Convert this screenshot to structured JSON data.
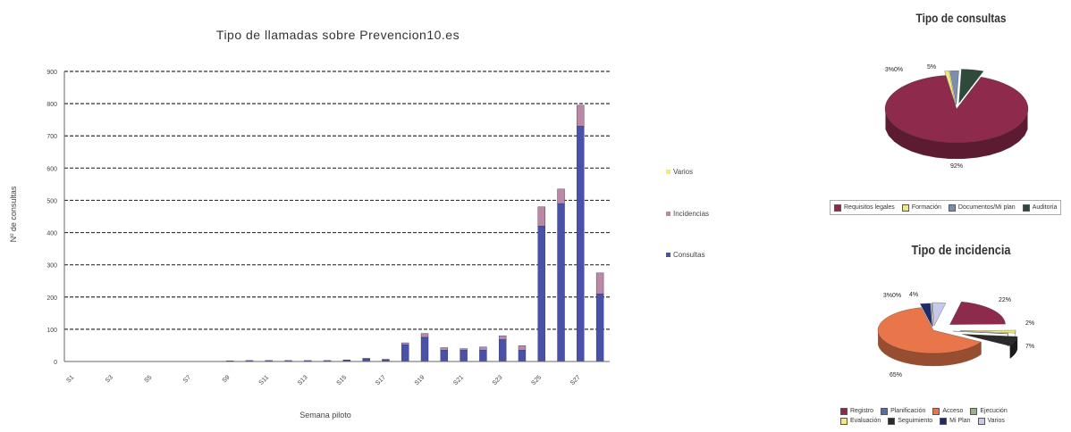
{
  "chart_data": [
    {
      "type": "bar",
      "stacked": true,
      "title": "Tipo de llamadas sobre Prevencion10.es",
      "xlabel": "Semana piloto",
      "ylabel": "Nº de consultas",
      "ylim": [
        0,
        900
      ],
      "yticks": [
        0,
        100,
        200,
        300,
        400,
        500,
        600,
        700,
        800,
        900
      ],
      "ytick_labels": [
        "0",
        "100",
        "200",
        "300",
        "400",
        "500",
        "600",
        "700",
        "800",
        "900"
      ],
      "grid": true,
      "legend": "right",
      "categories": [
        "S1",
        "S2",
        "S3",
        "S4",
        "S5",
        "S6",
        "S7",
        "S8",
        "S9",
        "S10",
        "S11",
        "S12",
        "S13",
        "S14",
        "S15",
        "S16",
        "S17",
        "S18",
        "S19",
        "S20",
        "S21",
        "S22",
        "S23",
        "S24",
        "S25",
        "S26",
        "S27",
        "S28"
      ],
      "xtick_labels": [
        "S1",
        "",
        "S3",
        "",
        "S5",
        "",
        "S7",
        "",
        "S9",
        "",
        "S11",
        "",
        "S13",
        "",
        "S15",
        "",
        "S17",
        "",
        "S19",
        "",
        "S21",
        "",
        "S23",
        "",
        "S25",
        "",
        "S27",
        ""
      ],
      "series": [
        {
          "name": "Consultas",
          "color": "#4a52a8",
          "values": [
            0,
            0,
            0,
            0,
            0,
            0,
            0,
            0,
            2,
            3,
            3,
            3,
            3,
            3,
            4,
            8,
            5,
            52,
            75,
            35,
            35,
            35,
            68,
            35,
            420,
            490,
            730,
            210
          ]
        },
        {
          "name": "Incidencias",
          "color": "#b989a6",
          "values": [
            0,
            0,
            0,
            0,
            0,
            0,
            0,
            0,
            0,
            0,
            0,
            0,
            0,
            0,
            1,
            2,
            2,
            6,
            12,
            8,
            5,
            10,
            12,
            14,
            60,
            45,
            65,
            65
          ]
        },
        {
          "name": "Varios",
          "color": "#f2e97e",
          "values": [
            0,
            0,
            0,
            0,
            0,
            0,
            0,
            0,
            0,
            0,
            0,
            0,
            0,
            0,
            0,
            0,
            0,
            0,
            0,
            0,
            0,
            0,
            0,
            0,
            0,
            0,
            0,
            0
          ]
        }
      ]
    },
    {
      "type": "pie",
      "title": "Tipo de consultas",
      "legend": "bottom",
      "slices": [
        {
          "name": "Requisitos legales",
          "value": 92,
          "label": "92%",
          "color": "#8e2a4c"
        },
        {
          "name": "Formación",
          "value": 1,
          "label": "",
          "color": "#f2e97e"
        },
        {
          "name": "Documentos/Mi plan",
          "value": 2,
          "label": "",
          "color": "#7c8fa8"
        },
        {
          "name": "Auditoria",
          "value": 5,
          "label": "5%",
          "color": "#2e4a3a"
        }
      ],
      "extra_labels": [
        "3%0%"
      ]
    },
    {
      "type": "pie",
      "title": "Tipo de incidencia",
      "legend": "bottom",
      "slices": [
        {
          "name": "Registro",
          "value": 22,
          "label": "22%",
          "color": "#8e2a4c"
        },
        {
          "name": "Evaluación",
          "value": 2,
          "label": "2%",
          "color": "#f2e97e"
        },
        {
          "name": "Planificación",
          "value": 0,
          "label": "",
          "color": "#5870a8"
        },
        {
          "name": "Seguimiento",
          "value": 7,
          "label": "7%",
          "color": "#2a2a2a"
        },
        {
          "name": "Acceso",
          "value": 65,
          "label": "65%",
          "color": "#e8764a"
        },
        {
          "name": "Mi Plan",
          "value": 3,
          "label": "",
          "color": "#1e2a6a"
        },
        {
          "name": "Ejecución",
          "value": 0,
          "label": "",
          "color": "#9ab08a"
        },
        {
          "name": "Varios",
          "value": 4,
          "label": "4%",
          "color": "#c8c8e8"
        }
      ],
      "extra_labels": [
        "3%0%"
      ]
    }
  ]
}
